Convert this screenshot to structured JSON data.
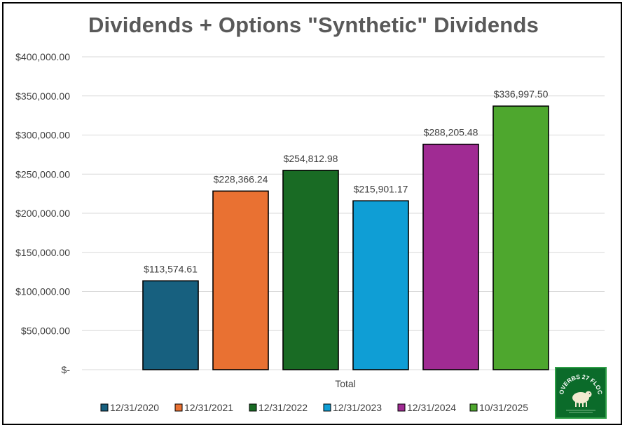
{
  "chart_data": {
    "type": "bar",
    "title": "Dividends + Options \"Synthetic\" Dividends",
    "categories": [
      "Total"
    ],
    "xlabel": "",
    "ylabel": "",
    "ylim": [
      0,
      400000
    ],
    "yticks": [
      0,
      50000,
      100000,
      150000,
      200000,
      250000,
      300000,
      350000,
      400000
    ],
    "ytick_labels": [
      "$-",
      "$50,000.00",
      "$100,000.00",
      "$150,000.00",
      "$200,000.00",
      "$250,000.00",
      "$300,000.00",
      "$350,000.00",
      "$400,000.00"
    ],
    "grid": true,
    "legend_position": "bottom",
    "series": [
      {
        "name": "12/31/2020",
        "values": [
          113574.61
        ],
        "label": "$113,574.61",
        "color": "#17607f"
      },
      {
        "name": "12/31/2021",
        "values": [
          228366.24
        ],
        "label": "$228,366.24",
        "color": "#e97132"
      },
      {
        "name": "12/31/2022",
        "values": [
          254812.98
        ],
        "label": "$254,812.98",
        "color": "#196b24"
      },
      {
        "name": "12/31/2023",
        "values": [
          215901.17
        ],
        "label": "$215,901.17",
        "color": "#0f9ed5"
      },
      {
        "name": "12/31/2024",
        "values": [
          288205.48
        ],
        "label": "$288,205.48",
        "color": "#a02b93"
      },
      {
        "name": "10/31/2025",
        "values": [
          336997.5
        ],
        "label": "$336,997.50",
        "color": "#4ea72e"
      }
    ]
  },
  "logo": {
    "icon": "sheep-icon",
    "text": "PROVERBS 27 FLOCKS"
  }
}
